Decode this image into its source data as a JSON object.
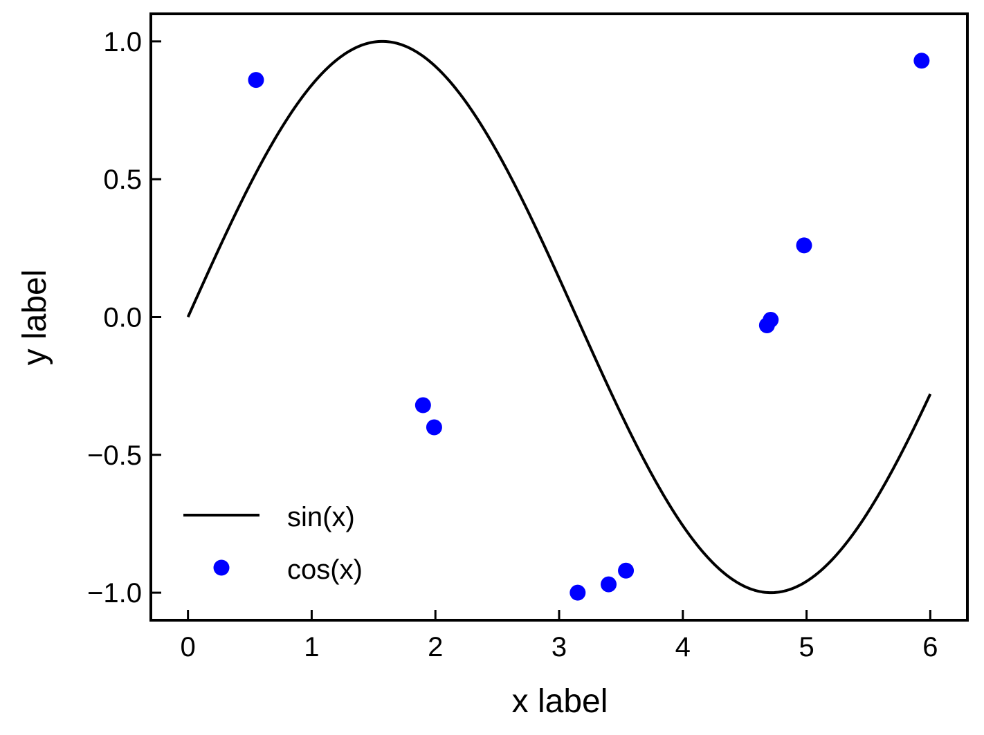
{
  "chart_data": {
    "type": "line",
    "title": "",
    "xlabel": "x label",
    "ylabel": "y label",
    "xlim": [
      -0.3,
      6.3
    ],
    "ylim": [
      -1.1,
      1.1
    ],
    "xticks": [
      0,
      1,
      2,
      3,
      4,
      5,
      6
    ],
    "yticks": [
      -1.0,
      -0.5,
      0.0,
      0.5,
      1.0
    ],
    "xtick_labels": [
      "0",
      "1",
      "2",
      "3",
      "4",
      "5",
      "6"
    ],
    "ytick_labels": [
      "−1.0",
      "−0.5",
      "0.0",
      "0.5",
      "1.0"
    ],
    "grid": false,
    "legend_position": "lower-left",
    "series": [
      {
        "name": "sin(x)",
        "type": "line",
        "color": "#000000",
        "function": "sin",
        "x_range": [
          0,
          6
        ]
      },
      {
        "name": "cos(x)",
        "type": "scatter",
        "color": "#0000ff",
        "points": [
          {
            "x": 0.55,
            "y": 0.86
          },
          {
            "x": 1.9,
            "y": -0.32
          },
          {
            "x": 1.99,
            "y": -0.4
          },
          {
            "x": 3.15,
            "y": -1.0
          },
          {
            "x": 3.4,
            "y": -0.97
          },
          {
            "x": 3.54,
            "y": -0.92
          },
          {
            "x": 4.68,
            "y": -0.03
          },
          {
            "x": 4.71,
            "y": -0.01
          },
          {
            "x": 4.98,
            "y": 0.26
          },
          {
            "x": 5.93,
            "y": 0.93
          }
        ]
      }
    ]
  }
}
